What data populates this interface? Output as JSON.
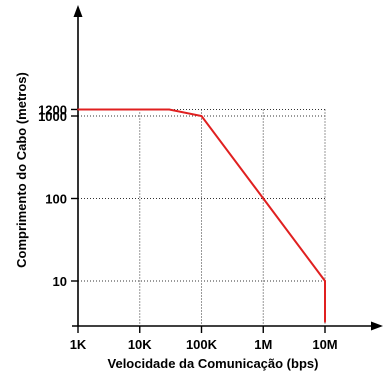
{
  "chart_data": {
    "type": "line",
    "title": "",
    "xlabel": "Velocidade da Comunicação (bps)",
    "ylabel": "Comprimento do Cabo (metros)",
    "x_scale": "log",
    "x_ticks": [
      {
        "value": 1000,
        "label": "1K"
      },
      {
        "value": 10000,
        "label": "10K"
      },
      {
        "value": 100000,
        "label": "100K"
      },
      {
        "value": 1000000,
        "label": "1M"
      },
      {
        "value": 10000000,
        "label": "10M"
      }
    ],
    "y_ticks": [
      {
        "value": 10,
        "label": "10"
      },
      {
        "value": 100,
        "label": "100"
      },
      {
        "value": 1000,
        "label": "1000"
      },
      {
        "value": 1200,
        "label": "1200"
      }
    ],
    "grid": true,
    "series": [
      {
        "color": "#e02020",
        "points": [
          {
            "x": 1000,
            "y": 1200
          },
          {
            "x": 30000,
            "y": 1200
          },
          {
            "x": 100000,
            "y": 1000
          },
          {
            "x": 1000000,
            "y": 100
          },
          {
            "x": 10000000,
            "y": 10
          },
          {
            "x": 10000000,
            "y": 3.2
          }
        ]
      }
    ]
  }
}
